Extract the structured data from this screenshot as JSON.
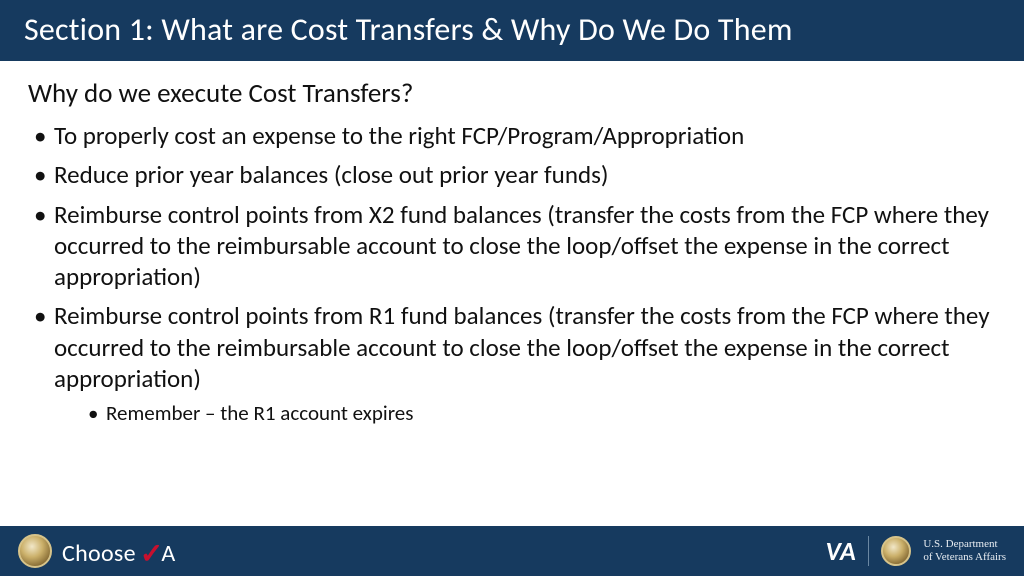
{
  "colors": {
    "header_bg": "#163a5f",
    "footer_bg": "#163a5f",
    "body_bg": "#ffffff",
    "title_color": "#ffffff",
    "text_color": "#111111",
    "check_color": "#c8102e"
  },
  "typography": {
    "title_fontsize": 32,
    "subheading_fontsize": 27,
    "bullet_fontsize": 25,
    "subbullet_fontsize": 21,
    "font_family": "Calibri"
  },
  "header": {
    "title": "Section 1: What are Cost Transfers & Why Do We Do Them"
  },
  "content": {
    "subheading": "Why do we execute Cost Transfers?",
    "bullets": [
      {
        "text": "To properly cost an expense to the right FCP/Program/Appropriation"
      },
      {
        "text": "Reduce prior year balances (close out prior year funds)"
      },
      {
        "text": "Reimburse control points from X2 fund balances (transfer the costs from the FCP where they occurred to the reimbursable account to close the loop/offset the expense in the correct appropriation)"
      },
      {
        "text": "Reimburse control points from R1 fund balances (transfer the costs from the FCP where they occurred to the reimbursable account to close the loop/offset the expense in the correct appropriation)",
        "sub": [
          {
            "text": "Remember – the R1 account expires"
          }
        ]
      }
    ]
  },
  "footer": {
    "choose_word": "Choose",
    "choose_a": "A",
    "va_mark": "VA",
    "dept_line1": "U.S. Department",
    "dept_line2": "of Veterans Affairs"
  }
}
